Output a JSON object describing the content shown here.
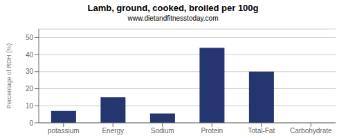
{
  "chart_data": {
    "type": "bar",
    "title": "Lamb, ground, cooked, broiled per 100g",
    "subtitle": "www.dietandfitnesstoday.com",
    "categories": [
      "potassium",
      "Energy",
      "Sodium",
      "Protein",
      "Total-Fat",
      "Carbohydrate"
    ],
    "values": [
      7,
      15,
      5.5,
      44,
      30,
      0
    ],
    "color": "#253570",
    "ylabel": "Percentage of RDH (%)",
    "ylim": [
      0,
      55
    ],
    "yticks": [
      0,
      10,
      20,
      30,
      40,
      50
    ],
    "grid": true
  }
}
